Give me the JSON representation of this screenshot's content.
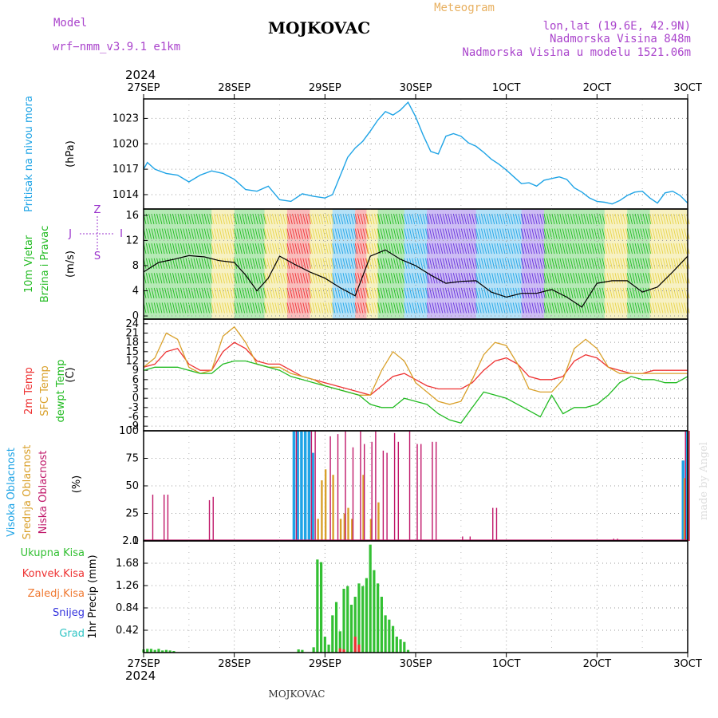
{
  "header": {
    "model_label": "Model",
    "model_name": "wrf−nmm_v3.9.1  e1km",
    "station": "MOJKOVAC",
    "product": "Meteogram",
    "lonlat": "lon,lat (19.6E, 42.9N)",
    "elevation": "Nadmorska Visina 848m",
    "model_elevation": "Nadmorska Visina u modelu 1521.06m",
    "year_top": "2024",
    "year_bottom": "2024",
    "footer_station": "MOJKOVAC",
    "made_by": "made by Angel"
  },
  "colors": {
    "pressure": "#1fa4e6",
    "wind_label": "#22bb22",
    "wind_purple": "#9a33cc",
    "temp2m": "#ee3333",
    "sfc": "#d9a02a",
    "dew": "#22bb22",
    "cloud_high": "#1fa4e6",
    "cloud_mid": "#d9a02a",
    "cloud_low": "#c0186a",
    "prec_total": "#33c033",
    "prec_conv": "#ee3333",
    "prec_frz": "#f07a33",
    "prec_snow": "#3333dd",
    "prec_grad": "#2fc4c4",
    "header_purple": "#aa44cc",
    "header_orange": "#e8b060"
  },
  "chart_data": [
    {
      "type": "line",
      "id": "pressure",
      "title": "",
      "xlabel": "",
      "ylabel": "(hPa)",
      "ylabel_title": "Pritisak na nivou mora",
      "x_ticks": [
        "27SEP",
        "28SEP",
        "29SEP",
        "30SEP",
        "1OCT",
        "2OCT",
        "3OCT"
      ],
      "x_range_hours": [
        0,
        144
      ],
      "yticks": [
        1014,
        1017,
        1020,
        1023
      ],
      "ylim": [
        1012.3,
        1025.3
      ],
      "series": [
        {
          "x": [
            0,
            1,
            3,
            6,
            9,
            12,
            15,
            18,
            21,
            24,
            27,
            30,
            33,
            36,
            39,
            42,
            45,
            48,
            50,
            52,
            54,
            56,
            58,
            60,
            62,
            64,
            66,
            68,
            70,
            72,
            74,
            76,
            78,
            80,
            82,
            84,
            86,
            88,
            90,
            92,
            94,
            96,
            98,
            100,
            102,
            104,
            106,
            108,
            110,
            112,
            114,
            116,
            118,
            120,
            122,
            124,
            126,
            128,
            130,
            132,
            134,
            136,
            138,
            140,
            142,
            144
          ],
          "values": [
            1017.0,
            1017.8,
            1017.0,
            1016.5,
            1016.3,
            1015.5,
            1016.3,
            1016.8,
            1016.5,
            1015.8,
            1014.6,
            1014.4,
            1015.0,
            1013.4,
            1013.2,
            1014.1,
            1013.8,
            1013.6,
            1014.0,
            1016.2,
            1018.4,
            1019.5,
            1020.3,
            1021.5,
            1022.8,
            1023.8,
            1023.4,
            1024.0,
            1024.9,
            1023.2,
            1021.0,
            1019.1,
            1018.8,
            1020.9,
            1021.2,
            1020.9,
            1020.1,
            1019.7,
            1019.0,
            1018.2,
            1017.6,
            1016.9,
            1016.1,
            1015.3,
            1015.4,
            1015.0,
            1015.7,
            1015.9,
            1016.1,
            1015.8,
            1014.8,
            1014.3,
            1013.6,
            1013.2,
            1013.1,
            1012.9,
            1013.3,
            1013.9,
            1014.3,
            1014.4,
            1013.6,
            1013.0,
            1014.2,
            1014.4,
            1013.9,
            1013.0
          ]
        }
      ]
    },
    {
      "type": "line",
      "id": "wind",
      "title": "",
      "xlabel": "",
      "ylabel": "(m/s)",
      "ylabel_title": [
        "10m Vjetar",
        "Brzina i Pravac"
      ],
      "compass": [
        "Z",
        "I",
        "S",
        "J"
      ],
      "yticks": [
        0,
        4,
        8,
        12,
        16
      ],
      "ylim": [
        -0.5,
        17
      ],
      "series": [
        {
          "x": [
            0,
            4,
            8,
            12,
            16,
            20,
            24,
            27,
            30,
            33,
            36,
            40,
            44,
            48,
            52,
            56,
            60,
            64,
            68,
            72,
            76,
            80,
            84,
            88,
            92,
            96,
            100,
            104,
            108,
            112,
            116,
            120,
            124,
            128,
            132,
            136,
            140,
            144
          ],
          "values": [
            7.0,
            8.5,
            9.0,
            9.6,
            9.4,
            8.8,
            8.5,
            6.5,
            4.0,
            6.0,
            9.5,
            8.2,
            7.0,
            6.0,
            4.5,
            3.2,
            9.5,
            10.5,
            9.0,
            8.0,
            6.5,
            5.2,
            5.5,
            5.6,
            3.8,
            3.0,
            3.6,
            3.6,
            4.2,
            3.0,
            1.4,
            5.2,
            5.6,
            5.6,
            3.8,
            4.6,
            7.0,
            9.5
          ]
        }
      ],
      "direction_bands": [
        {
          "x_from": 0,
          "x_to": 18,
          "color": "#22bb22"
        },
        {
          "x_from": 18,
          "x_to": 24,
          "color": "#e8d44a"
        },
        {
          "x_from": 24,
          "x_to": 32,
          "color": "#22bb22"
        },
        {
          "x_from": 32,
          "x_to": 38,
          "color": "#e8d44a"
        },
        {
          "x_from": 38,
          "x_to": 44,
          "color": "#ee3333"
        },
        {
          "x_from": 44,
          "x_to": 50,
          "color": "#e8d44a"
        },
        {
          "x_from": 50,
          "x_to": 56,
          "color": "#1fa4e6"
        },
        {
          "x_from": 56,
          "x_to": 59,
          "color": "#ee3333"
        },
        {
          "x_from": 59,
          "x_to": 62,
          "color": "#e8d44a"
        },
        {
          "x_from": 62,
          "x_to": 69,
          "color": "#22bb22"
        },
        {
          "x_from": 69,
          "x_to": 75,
          "color": "#1fa4e6"
        },
        {
          "x_from": 75,
          "x_to": 88,
          "color": "#6633dd"
        },
        {
          "x_from": 88,
          "x_to": 100,
          "color": "#1fa4e6"
        },
        {
          "x_from": 100,
          "x_to": 106,
          "color": "#6633dd"
        },
        {
          "x_from": 106,
          "x_to": 122,
          "color": "#22bb22"
        },
        {
          "x_from": 122,
          "x_to": 128,
          "color": "#e8d44a"
        },
        {
          "x_from": 128,
          "x_to": 134,
          "color": "#22bb22"
        },
        {
          "x_from": 134,
          "x_to": 144,
          "color": "#e8d44a"
        }
      ]
    },
    {
      "type": "line",
      "id": "temperature",
      "title": "",
      "xlabel": "",
      "ylabel": "(C)",
      "ylabel_titles": [
        "2m Temp",
        "SFC Temp",
        "dewpt Temp"
      ],
      "yticks": [
        -9,
        -6,
        -3,
        0,
        3,
        6,
        9,
        12,
        15,
        18,
        21,
        24
      ],
      "ylim": [
        -10.5,
        25.5
      ],
      "series": [
        {
          "name": "2m Temp",
          "x": [
            0,
            3,
            6,
            9,
            12,
            15,
            18,
            21,
            24,
            27,
            30,
            33,
            36,
            39,
            42,
            45,
            48,
            51,
            54,
            57,
            60,
            63,
            66,
            69,
            72,
            75,
            78,
            81,
            84,
            87,
            90,
            93,
            96,
            99,
            102,
            105,
            108,
            111,
            114,
            117,
            120,
            123,
            126,
            129,
            132,
            135,
            138,
            141,
            144
          ],
          "values": [
            10,
            11,
            15,
            16,
            11,
            9,
            9,
            15,
            18,
            16,
            12,
            11,
            11,
            9,
            7,
            6,
            5,
            4,
            3,
            2,
            1,
            4,
            7,
            8,
            6,
            4,
            3,
            3,
            3,
            5,
            9,
            12,
            13,
            11,
            7,
            6,
            6,
            7,
            12,
            14,
            13,
            10,
            9,
            8,
            8,
            9,
            9,
            9,
            9
          ]
        },
        {
          "name": "SFC Temp",
          "x": [
            0,
            3,
            6,
            9,
            12,
            15,
            18,
            21,
            24,
            27,
            30,
            33,
            36,
            39,
            42,
            45,
            48,
            51,
            54,
            57,
            60,
            63,
            66,
            69,
            72,
            75,
            78,
            81,
            84,
            87,
            90,
            93,
            96,
            99,
            102,
            105,
            108,
            111,
            114,
            117,
            120,
            123,
            126,
            129,
            132,
            135,
            138,
            141,
            144
          ],
          "values": [
            10,
            13,
            21,
            19,
            10,
            8,
            9,
            20,
            23,
            18,
            11,
            10,
            10,
            8,
            7,
            6,
            4,
            3,
            2,
            1,
            1,
            9,
            15,
            12,
            5,
            2,
            -1,
            -2,
            -1,
            6,
            14,
            18,
            17,
            11,
            3,
            2,
            2,
            6,
            16,
            19,
            16,
            10,
            8,
            8,
            8,
            8,
            8,
            8,
            8
          ]
        },
        {
          "name": "dewpt Temp",
          "x": [
            0,
            3,
            6,
            9,
            12,
            15,
            18,
            21,
            24,
            27,
            30,
            33,
            36,
            39,
            42,
            45,
            48,
            51,
            54,
            57,
            60,
            63,
            66,
            69,
            72,
            75,
            78,
            81,
            84,
            87,
            90,
            93,
            96,
            99,
            102,
            105,
            108,
            111,
            114,
            117,
            120,
            123,
            126,
            129,
            132,
            135,
            138,
            141,
            144
          ],
          "values": [
            9,
            10,
            10,
            10,
            9,
            8,
            8,
            11,
            12,
            12,
            11,
            10,
            9,
            7,
            6,
            5,
            4,
            3,
            2,
            1,
            -2,
            -3,
            -3,
            0,
            -1,
            -2,
            -5,
            -7,
            -8,
            -3,
            2,
            1,
            0,
            -2,
            -4,
            -6,
            1,
            -5,
            -3,
            -3,
            -2,
            1,
            5,
            7,
            6,
            6,
            5,
            5,
            7
          ]
        }
      ]
    },
    {
      "type": "bar",
      "id": "clouds",
      "title": "",
      "xlabel": "",
      "ylabel": "(%)",
      "ylabel_titles": [
        "Visoka Oblacnost",
        "Srednja Oblacnost",
        "Niska Oblacnost"
      ],
      "yticks": [
        0,
        25,
        50,
        75,
        100
      ],
      "ylim": [
        0,
        100
      ],
      "series": [
        {
          "name": "Visoka Oblacnost",
          "x": [
            40,
            41,
            42,
            43,
            44,
            45,
            143,
            144
          ],
          "values": [
            100,
            100,
            100,
            100,
            100,
            80,
            73,
            100
          ]
        },
        {
          "name": "Srednja Oblacnost",
          "x": [
            46,
            47,
            48,
            50,
            52,
            53,
            54,
            55,
            58,
            60,
            62,
            143,
            144
          ],
          "values": [
            20,
            55,
            65,
            60,
            20,
            25,
            30,
            20,
            60,
            20,
            35,
            57,
            100
          ]
        },
        {
          "name": "Niska Oblacnost",
          "x": [
            2,
            5,
            6,
            17,
            18,
            40,
            44,
            45,
            49,
            51,
            53,
            55,
            57,
            58,
            60,
            61,
            63,
            64,
            66,
            67,
            70,
            72,
            73,
            76,
            77,
            84,
            86,
            92,
            93,
            97,
            105,
            124,
            125,
            136,
            143,
            144
          ],
          "values": [
            42,
            42,
            42,
            37,
            40,
            100,
            100,
            100,
            95,
            97,
            100,
            85,
            100,
            88,
            90,
            100,
            82,
            80,
            98,
            90,
            100,
            88,
            88,
            90,
            90,
            4,
            4,
            30,
            30,
            1,
            1,
            2,
            2,
            1,
            100,
            100
          ]
        }
      ]
    },
    {
      "type": "bar",
      "id": "precipitation",
      "title": "",
      "xlabel": "",
      "ylabel": "1hr Precip (mm)",
      "ylabel_titles": [
        "Ukupna Kisa",
        "Konvek.Kisa",
        "Zaledj.Kisa",
        "Snijeg",
        "Grad"
      ],
      "yticks": [
        0.42,
        0.84,
        1.26,
        1.68,
        2.1
      ],
      "ylim": [
        0,
        2.1
      ],
      "series": [
        {
          "name": "Ukupna Kisa",
          "x": [
            0,
            1,
            2,
            3,
            4,
            5,
            6,
            7,
            8,
            41,
            42,
            45,
            46,
            47,
            48,
            49,
            50,
            51,
            52,
            53,
            54,
            55,
            56,
            57,
            58,
            59,
            60,
            61,
            62,
            63,
            64,
            65,
            66,
            67,
            68,
            69,
            70
          ],
          "values": [
            0.06,
            0.07,
            0.07,
            0.05,
            0.07,
            0.04,
            0.05,
            0.04,
            0.03,
            0.06,
            0.05,
            0.1,
            1.75,
            1.7,
            0.3,
            0.15,
            0.7,
            0.95,
            0.4,
            1.2,
            1.25,
            0.9,
            1.05,
            1.3,
            1.25,
            1.4,
            2.03,
            1.55,
            1.3,
            1.05,
            0.7,
            0.62,
            0.5,
            0.3,
            0.25,
            0.2,
            0.05
          ]
        },
        {
          "name": "Konvek.Kisa",
          "x": [
            52,
            53,
            56,
            57
          ],
          "values": [
            0.08,
            0.06,
            0.3,
            0.15
          ]
        },
        {
          "name": "Zaledj.Kisa",
          "x": [],
          "values": []
        },
        {
          "name": "Snijeg",
          "x": [],
          "values": []
        },
        {
          "name": "Grad",
          "x": [],
          "values": []
        }
      ]
    }
  ]
}
